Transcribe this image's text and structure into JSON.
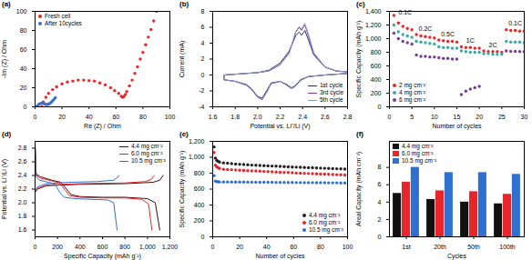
{
  "chart_data": [
    {
      "type": "scatter",
      "title": "(a)",
      "x_label": "Re (Z) / Ohm",
      "y_label": "-Im (Z) / Ohm",
      "xlim": [
        0,
        100
      ],
      "xticks": [
        0,
        20,
        40,
        60,
        80,
        100
      ],
      "ylim": [
        0,
        100
      ],
      "yticks": [
        0,
        20,
        40,
        60,
        80,
        100
      ],
      "legend": "upper left",
      "series": [
        {
          "name": "Fresh cell",
          "color": "#e8262a",
          "marker": "circle",
          "x": [
            5,
            6,
            8,
            10,
            13,
            16,
            20,
            24,
            28,
            32,
            36,
            40,
            44,
            48,
            52,
            56,
            59,
            62,
            64,
            65,
            66,
            67,
            68,
            70,
            72,
            74,
            76,
            78,
            80,
            82,
            84,
            86,
            88,
            90
          ],
          "values": [
            0,
            5,
            10,
            14,
            18,
            21,
            24,
            26,
            27,
            28,
            28,
            27.5,
            27,
            25,
            23,
            20,
            17,
            14,
            11,
            10,
            11,
            13,
            16,
            22,
            28,
            35,
            42,
            50,
            57,
            65,
            73,
            81,
            90,
            100
          ]
        },
        {
          "name": "After 10cycles",
          "color": "#3a6fc4",
          "marker": "circle",
          "x": [
            1,
            2,
            3,
            4,
            5,
            6,
            7,
            8,
            9,
            10,
            11,
            12,
            13,
            14,
            15
          ],
          "values": [
            0,
            1.5,
            2.8,
            3.5,
            3.8,
            3.6,
            3,
            2.5,
            2.4,
            2.8,
            3.6,
            4.8,
            6.2,
            7.8,
            9.5
          ]
        }
      ]
    },
    {
      "type": "line",
      "title": "(b)",
      "x_label": "Potential vs. Li⁺/Li (V)",
      "y_label": "Current (mA)",
      "xlim": [
        1.6,
        2.8
      ],
      "xticks": [
        1.6,
        1.8,
        {
          "value": 2,
          "label": "2.0"
        },
        2.2,
        2.4,
        2.6,
        2.8
      ],
      "ylim": [
        -4,
        8
      ],
      "yticks": [
        -4,
        -2,
        0,
        2,
        4,
        6,
        8
      ],
      "legend": "lower right",
      "x": [
        2.8,
        2.6,
        2.45,
        2.38,
        2.33,
        2.3,
        2.26,
        2.2,
        2.12,
        2.08,
        2.04,
        2.0,
        1.95,
        1.9,
        1.8,
        1.7,
        1.7,
        1.8,
        1.9,
        2.0,
        2.1,
        2.2,
        2.28,
        2.34,
        2.37,
        2.39,
        2.42,
        2.45,
        2.5,
        2.6,
        2.7,
        2.8
      ],
      "series": [
        {
          "name": "1st cycle",
          "color": "#2a2f7a",
          "line_style": "solid",
          "values": [
            0.2,
            0,
            -0.2,
            -0.6,
            -1.4,
            -1.6,
            -1.2,
            -0.8,
            -1.0,
            -2.0,
            -2.9,
            -2.7,
            -1.8,
            -1.2,
            -0.8,
            -0.6,
            0,
            0.1,
            0.2,
            0.3,
            0.6,
            1.5,
            3.0,
            5.0,
            5.4,
            5.0,
            5.6,
            4.5,
            2.5,
            1.0,
            0.5,
            0.4
          ]
        },
        {
          "name": "3rd cycle",
          "color": "#7b3f8c",
          "line_style": "solid",
          "values": [
            0.2,
            0,
            -0.2,
            -0.7,
            -1.5,
            -1.7,
            -1.3,
            -0.8,
            -1.1,
            -2.2,
            -3.1,
            -2.8,
            -1.9,
            -1.3,
            -0.8,
            -0.6,
            0,
            0.1,
            0.2,
            0.3,
            0.5,
            1.3,
            2.8,
            5.4,
            6.0,
            5.6,
            6.3,
            5.0,
            2.7,
            1.0,
            0.5,
            0.4
          ]
        },
        {
          "name": "5th cycle",
          "color": "#8a9bc4",
          "line_style": "solid",
          "values": [
            0.2,
            0,
            -0.2,
            -0.7,
            -1.5,
            -1.7,
            -1.3,
            -0.8,
            -1.1,
            -2.2,
            -3.0,
            -2.8,
            -1.9,
            -1.3,
            -0.8,
            -0.6,
            0,
            0.1,
            0.2,
            0.3,
            0.5,
            1.3,
            2.7,
            5.5,
            6.1,
            5.8,
            6.5,
            5.2,
            2.8,
            1.0,
            0.5,
            0.4
          ]
        }
      ]
    },
    {
      "type": "scatter",
      "title": "(c)",
      "x_label": "Number of cycles",
      "y_label": "Specific Capacity (mAh g⁻¹)",
      "xlim": [
        0,
        30
      ],
      "xticks": [
        0,
        5,
        10,
        15,
        20,
        25,
        30
      ],
      "ylim": [
        0,
        1400
      ],
      "yticks": [
        0,
        200,
        400,
        600,
        800,
        {
          "value": 1000,
          "label": "1,000"
        },
        {
          "value": 1200,
          "label": "1,200"
        },
        {
          "value": 1400,
          "label": "1,400"
        }
      ],
      "legend": "lower left",
      "x": [
        1,
        2,
        3,
        4,
        5,
        6,
        7,
        8,
        9,
        10,
        11,
        12,
        13,
        14,
        15,
        16,
        17,
        18,
        19,
        20,
        21,
        22,
        23,
        24,
        25,
        26,
        27,
        28,
        29,
        30
      ],
      "annotations": [
        {
          "text": "0.1C",
          "x": 3.5,
          "y": 1380
        },
        {
          "text": "0.2C",
          "x": 8,
          "y": 1150
        },
        {
          "text": "0.5C",
          "x": 13,
          "y": 1060
        },
        {
          "text": "1C",
          "x": 18,
          "y": 965
        },
        {
          "text": "2C",
          "x": 23,
          "y": 905
        },
        {
          "text": "0.1C",
          "x": 28,
          "y": 1220
        }
      ],
      "series": [
        {
          "name": "2 mg cm⁻²",
          "color": "#e8262a",
          "marker": "circle",
          "values": [
            1340,
            1230,
            1180,
            1150,
            1130,
            1060,
            1040,
            1030,
            1020,
            1010,
            980,
            970,
            960,
            960,
            950,
            880,
            870,
            870,
            860,
            860,
            820,
            810,
            810,
            810,
            800,
            1130,
            1120,
            1120,
            1110,
            1110
          ]
        },
        {
          "name": "4 mg cm⁻²",
          "color": "#3aa9a4",
          "marker": "circle",
          "values": [
            1200,
            1100,
            1060,
            1040,
            1020,
            960,
            950,
            940,
            930,
            920,
            880,
            870,
            870,
            860,
            860,
            820,
            810,
            800,
            800,
            800,
            780,
            780,
            770,
            770,
            770,
            960,
            950,
            950,
            950,
            940
          ]
        },
        {
          "name": "6 mg cm⁻²",
          "color": "#7a3a9a",
          "marker": "circle",
          "values": [
            1080,
            1000,
            960,
            940,
            920,
            760,
            740,
            740,
            730,
            730,
            720,
            710,
            710,
            700,
            700,
            180,
            230,
            260,
            280,
            300,
            null,
            null,
            null,
            null,
            null,
            820,
            815,
            815,
            810,
            810
          ]
        }
      ]
    },
    {
      "type": "line",
      "title": "(d)",
      "x_label": "Specific Capacity (mAh g⁻¹)",
      "y_label": "Potential vs. Li⁺/Li (V)",
      "xlim": [
        0,
        1200
      ],
      "xticks": [
        0,
        200,
        400,
        600,
        800,
        {
          "value": 1000,
          "label": "1,000"
        },
        {
          "value": 1200,
          "label": "1,200"
        }
      ],
      "ylim": [
        1.5,
        2.9
      ],
      "yticks": [
        1.6,
        1.8,
        {
          "value": 2,
          "label": "2.0"
        },
        2.2,
        2.4,
        2.6,
        2.8
      ],
      "legend": "upper right",
      "series": [
        {
          "name": "4.4 mg cm⁻²",
          "color": "#3a1010",
          "line_style": "solid",
          "x": [
            0,
            10,
            50,
            150,
            230,
            280,
            320,
            400,
            600,
            800,
            1000,
            1070,
            1110,
            1110,
            0,
            20,
            100,
            400,
            800,
            1050,
            1110,
            1140
          ],
          "values": [
            2.85,
            2.42,
            2.38,
            2.33,
            2.3,
            2.2,
            2.12,
            2.09,
            2.08,
            2.08,
            2.06,
            2.0,
            1.6,
            null,
            2.15,
            2.2,
            2.25,
            2.27,
            2.28,
            2.3,
            2.33,
            2.4
          ]
        },
        {
          "name": "6.0 mg cm⁻²",
          "color": "#e8262a",
          "line_style": "solid",
          "x": [
            0,
            10,
            50,
            150,
            220,
            270,
            310,
            400,
            600,
            800,
            950,
            1010,
            1040,
            1040,
            0,
            20,
            100,
            400,
            800,
            980,
            1030,
            1060
          ],
          "values": [
            2.85,
            2.4,
            2.36,
            2.32,
            2.29,
            2.18,
            2.1,
            2.08,
            2.07,
            2.07,
            2.05,
            1.98,
            1.6,
            null,
            2.16,
            2.21,
            2.26,
            2.28,
            2.29,
            2.31,
            2.34,
            2.4
          ]
        },
        {
          "name": "10.5 mg cm⁻²",
          "color": "#2f6fd0",
          "line_style": "solid",
          "x": [
            0,
            10,
            40,
            120,
            180,
            220,
            260,
            350,
            500,
            650,
            700,
            730,
            730,
            0,
            20,
            100,
            300,
            550,
            700,
            740,
            745
          ],
          "values": [
            2.85,
            2.38,
            2.33,
            2.3,
            2.27,
            2.15,
            2.08,
            2.06,
            2.05,
            2.04,
            2.0,
            1.6,
            null,
            2.18,
            2.23,
            2.28,
            2.3,
            2.31,
            2.33,
            2.38,
            2.4
          ]
        }
      ]
    },
    {
      "type": "scatter",
      "title": "(e)",
      "x_label": "Number of cycles",
      "y_label": "Specific Capacity (mAh g⁻¹)",
      "xlim": [
        0,
        100
      ],
      "xticks": [
        0,
        20,
        40,
        60,
        80,
        100
      ],
      "ylim": [
        0,
        1200
      ],
      "yticks": [
        0,
        200,
        400,
        600,
        800,
        {
          "value": 1000,
          "label": "1,000"
        },
        {
          "value": 1200,
          "label": "1,200"
        }
      ],
      "legend": "lower right",
      "x": [
        1,
        2,
        3,
        4,
        5,
        8,
        11,
        14,
        17,
        20,
        23,
        26,
        29,
        32,
        35,
        38,
        41,
        44,
        47,
        50,
        53,
        56,
        59,
        62,
        65,
        68,
        71,
        74,
        77,
        80,
        83,
        86,
        89,
        92,
        95,
        98
      ],
      "series": [
        {
          "name": "4.4 mg cm⁻²",
          "color": "#222222",
          "marker": "circle",
          "values": [
            1130,
            990,
            960,
            950,
            940,
            930,
            925,
            920,
            915,
            912,
            908,
            905,
            902,
            900,
            897,
            895,
            892,
            890,
            888,
            885,
            883,
            880,
            878,
            876,
            874,
            872,
            870,
            868,
            866,
            864,
            862,
            860,
            858,
            856,
            854,
            852
          ]
        },
        {
          "name": "6.0 mg cm⁻²",
          "color": "#e8262a",
          "marker": "circle",
          "values": [
            1060,
            900,
            880,
            870,
            860,
            850,
            847,
            844,
            841,
            838,
            835,
            832,
            830,
            828,
            825,
            822,
            820,
            818,
            815,
            812,
            810,
            808,
            805,
            802,
            800,
            798,
            796,
            794,
            792,
            790,
            788,
            786,
            784,
            782,
            780,
            778
          ]
        },
        {
          "name": "10.5 mg cm⁻²",
          "color": "#2f6fd0",
          "marker": "circle",
          "values": [
            770,
            700,
            695,
            692,
            690,
            690,
            690,
            689,
            689,
            688,
            688,
            687,
            687,
            686,
            686,
            685,
            685,
            685,
            684,
            684,
            683,
            683,
            683,
            682,
            682,
            681,
            681,
            681,
            680,
            680,
            680,
            679,
            679,
            679,
            678,
            678
          ]
        }
      ]
    },
    {
      "type": "bar",
      "title": "(f)",
      "x_label": "Cycles",
      "y_label": "Areal Capacity (mAh cm⁻²)",
      "categories": [
        "1st",
        "20th",
        "50th",
        "100th"
      ],
      "ylim": [
        0,
        11
      ],
      "yticks": [
        0,
        2,
        4,
        6,
        8
      ],
      "legend": "upper left",
      "series": [
        {
          "name": "4.4 mg cm⁻²",
          "color": "#111111",
          "values": [
            5.0,
            4.3,
            4.0,
            3.8
          ]
        },
        {
          "name": "6.0 mg cm⁻²",
          "color": "#e8262a",
          "values": [
            6.3,
            5.3,
            5.2,
            4.9
          ]
        },
        {
          "name": "10.5 mg cm⁻²",
          "color": "#2f6fd0",
          "values": [
            8.0,
            7.4,
            7.4,
            7.2
          ]
        }
      ]
    }
  ]
}
